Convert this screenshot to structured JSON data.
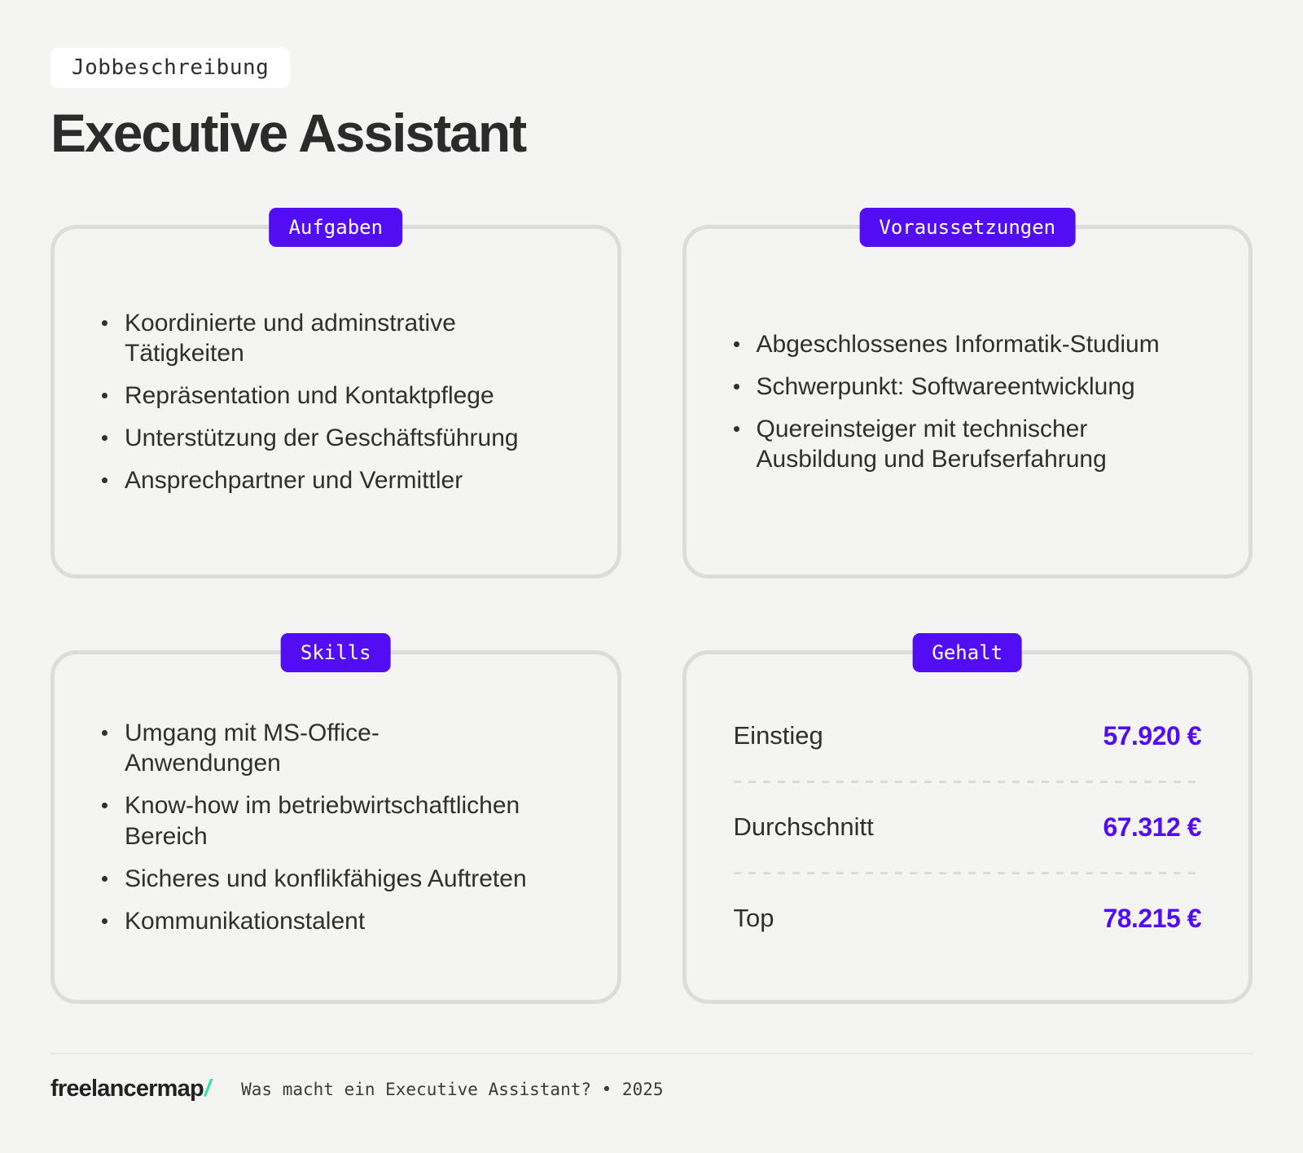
{
  "page": {
    "background": "#f4f4f2",
    "accent_purple": "#530df2",
    "teal": "#2ee3ac",
    "card_border": "#dcdcda"
  },
  "header": {
    "tag": "Jobbeschreibung",
    "title": "Executive Assistant"
  },
  "cards": {
    "aufgaben": {
      "badge": "Aufgaben",
      "items": [
        "Koordinierte und adminstrative\nTätigkeiten",
        "Repräsentation und Kontaktpflege",
        "Unterstützung der Geschäftsführung",
        "Ansprechpartner und Vermittler"
      ]
    },
    "voraussetzungen": {
      "badge": "Voraussetzungen",
      "items": [
        "Abgeschlossenes Informatik-Studium",
        "Schwerpunkt: Softwareentwicklung",
        "Quereinsteiger mit technischer\nAusbildung und Berufserfahrung"
      ]
    },
    "skills": {
      "badge": "Skills",
      "items": [
        "Umgang mit MS-Office-\nAnwendungen",
        "Know-how im betriebwirtschaftlichen\nBereich",
        "Sicheres und konflikfähiges Auftreten",
        "Kommunikationstalent"
      ]
    },
    "gehalt": {
      "badge": "Gehalt",
      "rows": [
        {
          "label": "Einstieg",
          "value": "57.920 €"
        },
        {
          "label": "Durchschnitt",
          "value": "67.312 €"
        },
        {
          "label": "Top",
          "value": "78.215 €"
        }
      ]
    }
  },
  "footer": {
    "logo": "freelancermap",
    "logo_slash": "/",
    "caption": "Was macht ein Executive Assistant? • 2025"
  }
}
